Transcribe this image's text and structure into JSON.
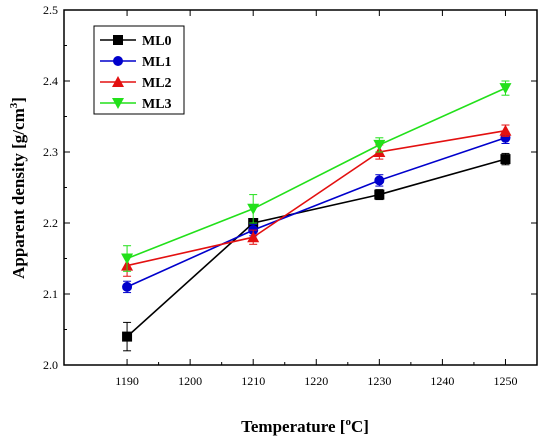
{
  "chart_data": {
    "type": "line",
    "xlabel": "Temperature [°C]",
    "xlabel_parts": {
      "prefix": "Temperature [",
      "sup": "o",
      "suffix": "C]"
    },
    "ylabel": "Apparent density [g/cm3]",
    "ylabel_parts": {
      "prefix": "Apparent density [g/cm",
      "sup": "3",
      "suffix": "]"
    },
    "xlim": [
      1180,
      1255
    ],
    "ylim": [
      2.0,
      2.5
    ],
    "x_ticks": [
      1190,
      1200,
      1210,
      1220,
      1230,
      1240,
      1250
    ],
    "y_ticks": [
      2.0,
      2.1,
      2.2,
      2.3,
      2.4,
      2.5
    ],
    "x": [
      1190,
      1210,
      1230,
      1250
    ],
    "grid": false,
    "legend_position": "top-left",
    "series": [
      {
        "name": "ML0",
        "values": [
          2.04,
          2.2,
          2.24,
          2.29
        ],
        "errors": [
          0.02,
          0.005,
          0.007,
          0.008
        ],
        "color": "#000000",
        "marker": "square"
      },
      {
        "name": "ML1",
        "values": [
          2.11,
          2.19,
          2.26,
          2.32
        ],
        "errors": [
          0.008,
          0.008,
          0.008,
          0.008
        ],
        "color": "#0000cc",
        "marker": "circle"
      },
      {
        "name": "ML2",
        "values": [
          2.14,
          2.18,
          2.3,
          2.33
        ],
        "errors": [
          0.015,
          0.01,
          0.01,
          0.008
        ],
        "color": "#e31010",
        "marker": "triangle-up"
      },
      {
        "name": "ML3",
        "values": [
          2.15,
          2.22,
          2.31,
          2.39
        ],
        "errors": [
          0.018,
          0.02,
          0.01,
          0.01
        ],
        "color": "#22e01a",
        "marker": "triangle-down"
      }
    ]
  }
}
